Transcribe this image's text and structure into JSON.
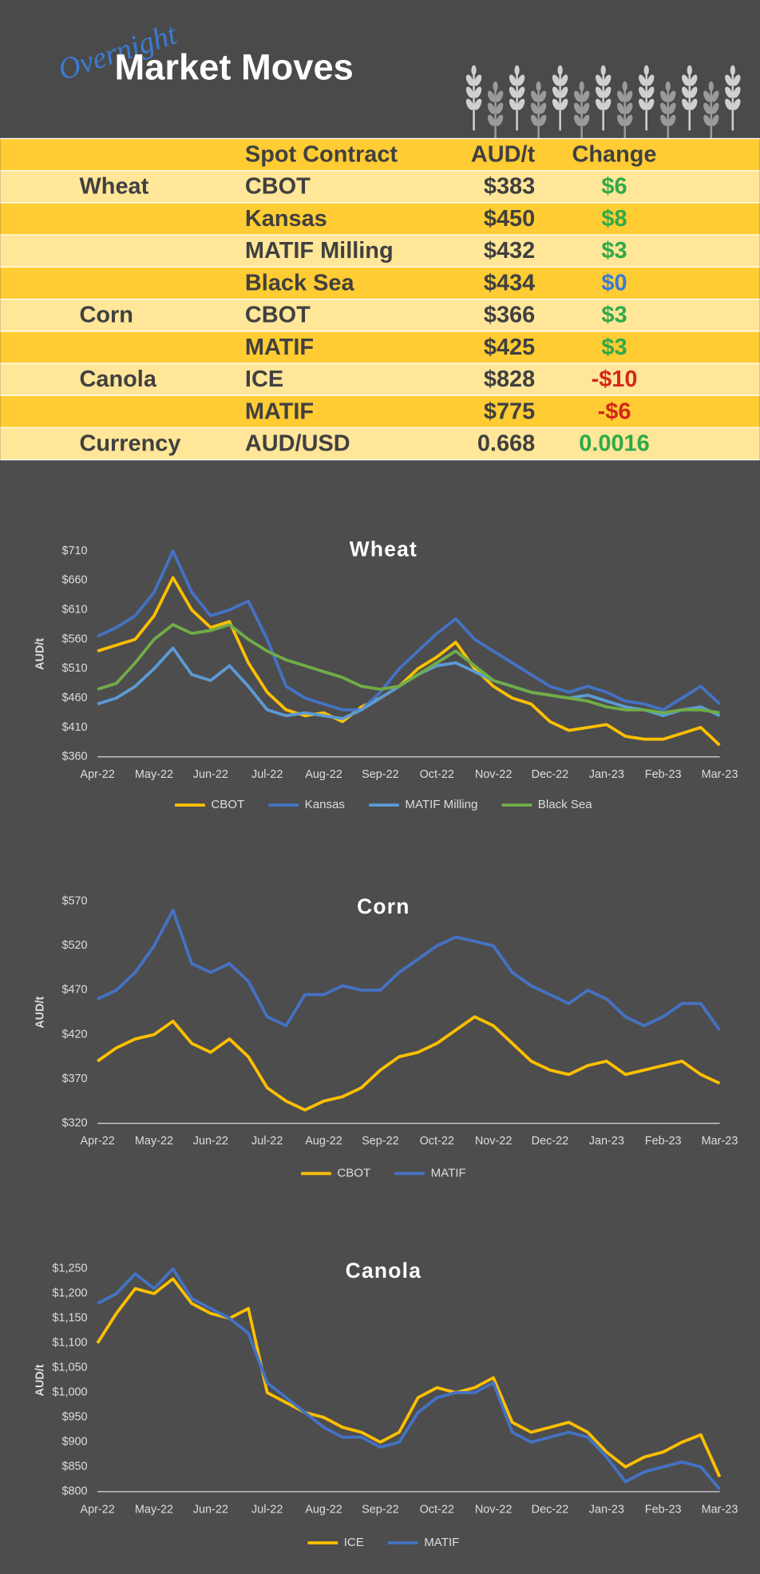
{
  "header": {
    "script": "Overnight",
    "title": "Market Moves"
  },
  "table": {
    "columns": [
      "Spot Contract",
      "AUD/t",
      "Change"
    ],
    "rows": [
      {
        "group": "Wheat",
        "contract": "CBOT",
        "price": "$383",
        "change": "$6",
        "change_color": "#2eaa4a"
      },
      {
        "contract": "Kansas",
        "price": "$450",
        "change": "$8",
        "change_color": "#2eaa4a"
      },
      {
        "contract": "MATIF Milling",
        "price": "$432",
        "change": "$3",
        "change_color": "#2eaa4a"
      },
      {
        "contract": "Black Sea",
        "price": "$434",
        "change": "$0",
        "change_color": "#3a7bd5"
      },
      {
        "group": "Corn",
        "contract": "CBOT",
        "price": "$366",
        "change": "$3",
        "change_color": "#2eaa4a"
      },
      {
        "contract": "MATIF",
        "price": "$425",
        "change": "$3",
        "change_color": "#2eaa4a"
      },
      {
        "group": "Canola",
        "contract": "ICE",
        "price": "$828",
        "change": "-$10",
        "change_color": "#d4281a"
      },
      {
        "contract": "MATIF",
        "price": "$775",
        "change": "-$6",
        "change_color": "#d4281a"
      },
      {
        "group": "Currency",
        "contract": "AUD/USD",
        "price": "0.668",
        "change": "0.0016",
        "change_color": "#2eaa4a"
      }
    ]
  },
  "chart_data": [
    {
      "type": "line",
      "title": "Wheat",
      "y_label": "AUD/t",
      "legend": "bottom",
      "categories": [
        "Apr-22",
        null,
        null,
        "May-22",
        null,
        null,
        "Jun-22",
        null,
        null,
        "Jul-22",
        null,
        null,
        "Aug-22",
        null,
        null,
        "Sep-22",
        null,
        null,
        "Oct-22",
        null,
        null,
        "Nov-22",
        null,
        null,
        "Dec-22",
        null,
        null,
        "Jan-23",
        null,
        null,
        "Feb-23",
        null,
        null,
        "Mar-23"
      ],
      "ylim": [
        360,
        710
      ],
      "yticks": [
        {
          "value": 360,
          "label": "$360"
        },
        {
          "value": 410,
          "label": "$410"
        },
        {
          "value": 460,
          "label": "$460"
        },
        {
          "value": 510,
          "label": "$510"
        },
        {
          "value": 560,
          "label": "$560"
        },
        {
          "value": 610,
          "label": "$610"
        },
        {
          "value": 660,
          "label": "$660"
        },
        {
          "value": 710,
          "label": "$710"
        }
      ],
      "series": [
        {
          "name": "CBOT",
          "color": "#ffc000",
          "values": [
            540,
            550,
            560,
            600,
            665,
            610,
            580,
            590,
            520,
            470,
            440,
            430,
            435,
            420,
            445,
            460,
            480,
            510,
            530,
            555,
            510,
            480,
            460,
            450,
            420,
            405,
            410,
            415,
            395,
            390,
            390,
            400,
            410,
            380
          ]
        },
        {
          "name": "Kansas",
          "color": "#4472c4",
          "values": [
            565,
            580,
            600,
            640,
            710,
            640,
            600,
            610,
            625,
            560,
            480,
            460,
            450,
            440,
            440,
            470,
            510,
            540,
            570,
            595,
            560,
            540,
            520,
            500,
            480,
            470,
            480,
            470,
            455,
            450,
            440,
            460,
            480,
            450
          ]
        },
        {
          "name": "MATIF Milling",
          "color": "#5b9bd5",
          "values": [
            450,
            460,
            480,
            510,
            545,
            500,
            490,
            515,
            480,
            440,
            430,
            435,
            430,
            425,
            440,
            460,
            480,
            500,
            515,
            520,
            505,
            490,
            480,
            470,
            465,
            460,
            465,
            455,
            445,
            440,
            430,
            440,
            445,
            430
          ]
        },
        {
          "name": "Black Sea",
          "color": "#70ad47",
          "values": [
            475,
            485,
            520,
            560,
            585,
            570,
            575,
            585,
            560,
            540,
            525,
            515,
            505,
            495,
            480,
            475,
            480,
            500,
            520,
            540,
            515,
            490,
            480,
            470,
            465,
            460,
            455,
            445,
            440,
            440,
            435,
            440,
            440,
            435
          ]
        }
      ]
    },
    {
      "type": "line",
      "title": "Corn",
      "y_label": "AUD/t",
      "legend": "bottom",
      "categories": [
        "Apr-22",
        null,
        null,
        "May-22",
        null,
        null,
        "Jun-22",
        null,
        null,
        "Jul-22",
        null,
        null,
        "Aug-22",
        null,
        null,
        "Sep-22",
        null,
        null,
        "Oct-22",
        null,
        null,
        "Nov-22",
        null,
        null,
        "Dec-22",
        null,
        null,
        "Jan-23",
        null,
        null,
        "Feb-23",
        null,
        null,
        "Mar-23"
      ],
      "ylim": [
        320,
        570
      ],
      "yticks": [
        {
          "value": 320,
          "label": "$320"
        },
        {
          "value": 370,
          "label": "$370"
        },
        {
          "value": 420,
          "label": "$420"
        },
        {
          "value": 470,
          "label": "$470"
        },
        {
          "value": 520,
          "label": "$520"
        },
        {
          "value": 570,
          "label": "$570"
        }
      ],
      "series": [
        {
          "name": "CBOT",
          "color": "#ffc000",
          "values": [
            390,
            405,
            415,
            420,
            435,
            410,
            400,
            415,
            395,
            360,
            345,
            335,
            345,
            350,
            360,
            380,
            395,
            400,
            410,
            425,
            440,
            430,
            410,
            390,
            380,
            375,
            385,
            390,
            375,
            380,
            385,
            390,
            375,
            365
          ]
        },
        {
          "name": "MATIF",
          "color": "#4472c4",
          "values": [
            460,
            470,
            490,
            520,
            560,
            500,
            490,
            500,
            480,
            440,
            430,
            465,
            465,
            475,
            470,
            470,
            490,
            505,
            520,
            530,
            525,
            520,
            490,
            475,
            465,
            455,
            470,
            460,
            440,
            430,
            440,
            455,
            455,
            425
          ]
        }
      ]
    },
    {
      "type": "line",
      "title": "Canola",
      "y_label": "AUD/t",
      "legend": "bottom",
      "categories": [
        "Apr-22",
        null,
        null,
        "May-22",
        null,
        null,
        "Jun-22",
        null,
        null,
        "Jul-22",
        null,
        null,
        "Aug-22",
        null,
        null,
        "Sep-22",
        null,
        null,
        "Oct-22",
        null,
        null,
        "Nov-22",
        null,
        null,
        "Dec-22",
        null,
        null,
        "Jan-23",
        null,
        null,
        "Feb-23",
        null,
        null,
        "Mar-23"
      ],
      "ylim": [
        800,
        1250
      ],
      "yticks": [
        {
          "value": 800,
          "label": "$800"
        },
        {
          "value": 850,
          "label": "$850"
        },
        {
          "value": 900,
          "label": "$900"
        },
        {
          "value": 950,
          "label": "$950"
        },
        {
          "value": 1000,
          "label": "$1,000"
        },
        {
          "value": 1050,
          "label": "$1,050"
        },
        {
          "value": 1100,
          "label": "$1,100"
        },
        {
          "value": 1150,
          "label": "$1,150"
        },
        {
          "value": 1200,
          "label": "$1,200"
        },
        {
          "value": 1250,
          "label": "$1,250"
        }
      ],
      "series": [
        {
          "name": "ICE",
          "color": "#ffc000",
          "values": [
            1100,
            1160,
            1210,
            1200,
            1230,
            1180,
            1160,
            1150,
            1170,
            1000,
            980,
            960,
            950,
            930,
            920,
            900,
            920,
            990,
            1010,
            1000,
            1010,
            1030,
            940,
            920,
            930,
            940,
            920,
            880,
            850,
            870,
            880,
            900,
            915,
            830
          ]
        },
        {
          "name": "MATIF",
          "color": "#4472c4",
          "values": [
            1180,
            1200,
            1240,
            1210,
            1250,
            1190,
            1170,
            1150,
            1120,
            1020,
            990,
            960,
            930,
            910,
            910,
            890,
            900,
            960,
            990,
            1000,
            1000,
            1020,
            920,
            900,
            910,
            920,
            910,
            870,
            820,
            840,
            850,
            860,
            850,
            805
          ]
        }
      ]
    }
  ]
}
